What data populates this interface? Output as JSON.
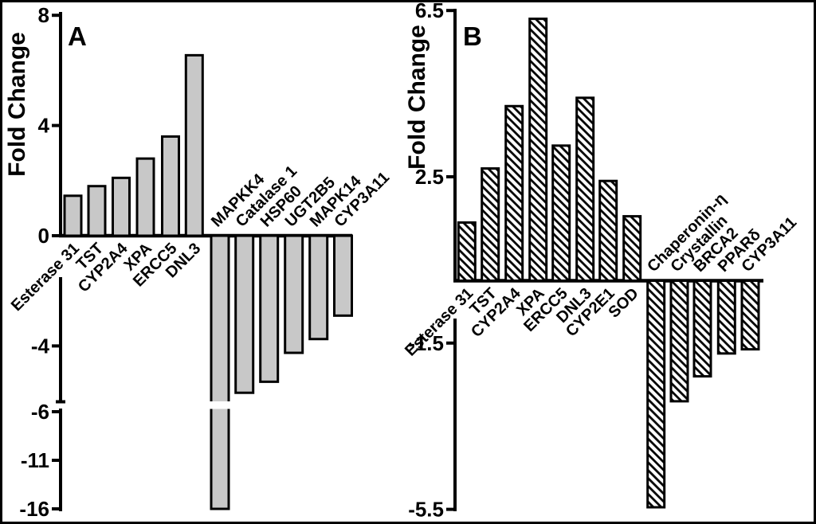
{
  "figure": {
    "background": "#ffffff",
    "frame_color": "#000000",
    "axis_color": "#000000",
    "panelA_bar_fill": "#c8c8c8",
    "panelB_bar_fill": "#ffffff"
  },
  "chart_data": [
    {
      "type": "bar",
      "panel_label": "A",
      "ylabel": "Fold Change",
      "bar_style": "solid",
      "bar_fill": "#c8c8c8",
      "yticks": [
        8,
        4,
        0,
        -4,
        -6,
        -11,
        -16
      ],
      "ylim": [
        8,
        -16
      ],
      "axis_break": true,
      "axis_break_between": [
        -4,
        -6
      ],
      "grid": false,
      "legend": "none",
      "categories": [
        "Esterase 31",
        "TST",
        "CYP2A4",
        "XPA",
        "ERCC5",
        "DNL3",
        "MAPKK4",
        "Catalase 1",
        "HSP60",
        "UGT2B5",
        "MAPK14",
        "CYP3A11"
      ],
      "values": [
        1.45,
        1.8,
        2.1,
        2.8,
        3.6,
        6.55,
        -16,
        -5.7,
        -5.3,
        -4.25,
        -3.75,
        -2.9
      ]
    },
    {
      "type": "bar",
      "panel_label": "B",
      "ylabel": "Fold Change",
      "bar_style": "diagonal-hatch",
      "bar_fill": "#ffffff",
      "yticks": [
        6.5,
        2.5,
        -1.5,
        -5.5
      ],
      "ylim": [
        6.5,
        -5.5
      ],
      "axis_break": false,
      "grid": false,
      "legend": "none",
      "categories": [
        "Esterase 31",
        "TST",
        "CYP2A4",
        "XPA",
        "ERCC5",
        "DNL3",
        "CYP2E1",
        "SOD",
        "Chaperonin-η",
        "Crystallin",
        "BRCA2",
        "PPARδ",
        "CYP3A11"
      ],
      "values": [
        1.4,
        2.7,
        4.2,
        6.3,
        3.25,
        4.4,
        2.4,
        1.55,
        -5.45,
        -2.9,
        -2.3,
        -1.75,
        -1.65
      ]
    }
  ]
}
